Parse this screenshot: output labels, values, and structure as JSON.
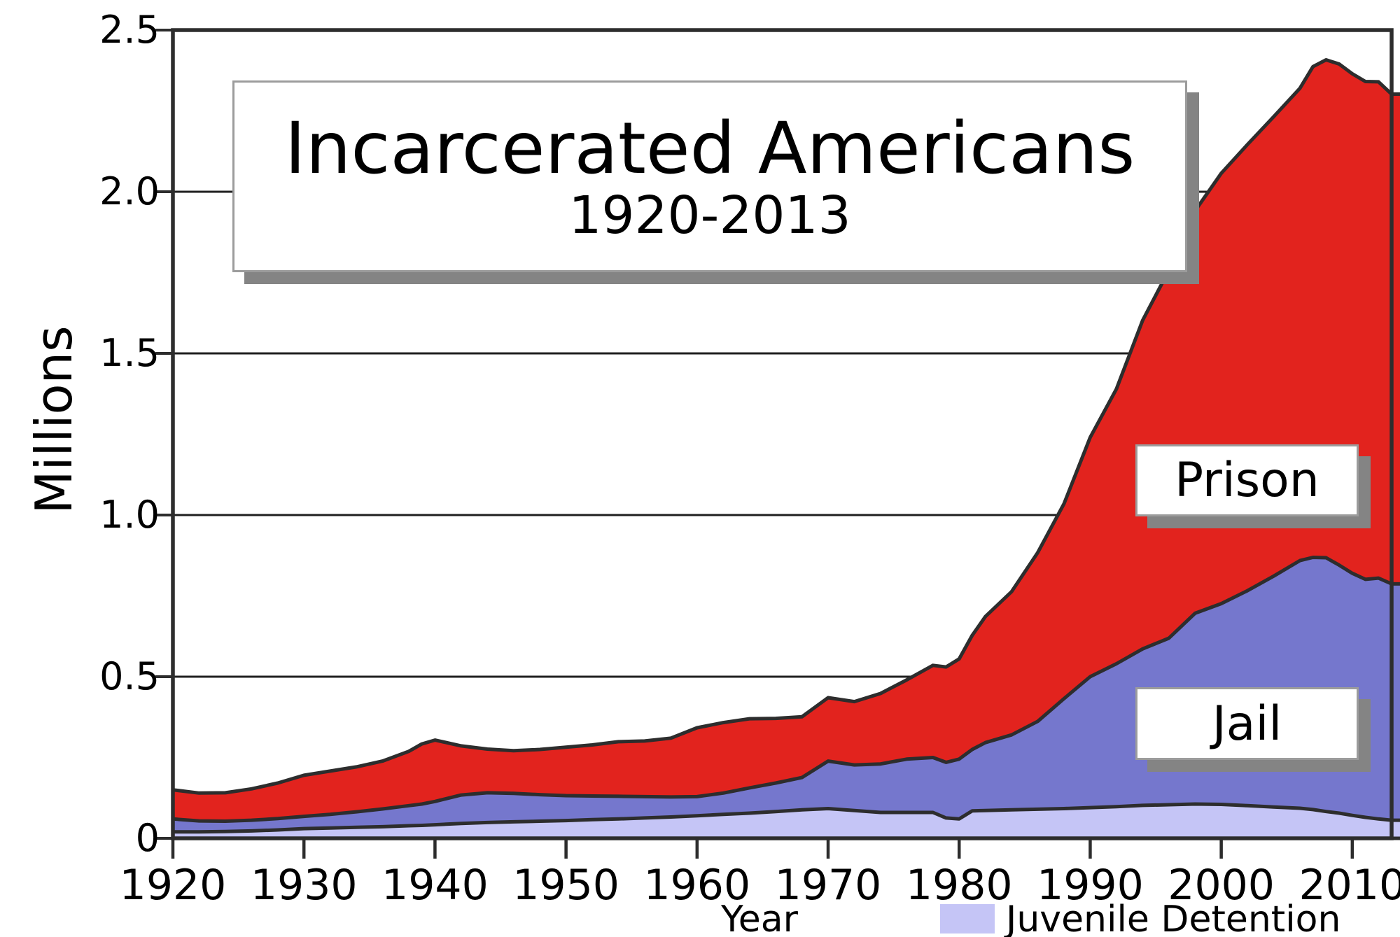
{
  "title_box": {
    "title": "Incarcerated Americans",
    "subtitle": "1920-2013"
  },
  "y_axis": {
    "label": "Millions",
    "ticks": [
      {
        "label": "0",
        "value": 0
      },
      {
        "label": "0.5",
        "value": 0.5
      },
      {
        "label": "1.0",
        "value": 1.0
      },
      {
        "label": "1.5",
        "value": 1.5
      },
      {
        "label": "2.0",
        "value": 2.0
      },
      {
        "label": "2.5",
        "value": 2.5
      }
    ]
  },
  "x_axis": {
    "label": "Year",
    "ticks": [
      {
        "label": "1920",
        "value": 1920
      },
      {
        "label": "1930",
        "value": 1930
      },
      {
        "label": "1940",
        "value": 1940
      },
      {
        "label": "1950",
        "value": 1950
      },
      {
        "label": "1960",
        "value": 1960
      },
      {
        "label": "1970",
        "value": 1970
      },
      {
        "label": "1980",
        "value": 1980
      },
      {
        "label": "1990",
        "value": 1990
      },
      {
        "label": "2000",
        "value": 2000
      },
      {
        "label": "2010",
        "value": 2010
      }
    ]
  },
  "area_labels": {
    "prison": "Prison",
    "jail": "Jail"
  },
  "legend": {
    "items": [
      {
        "label": "Juvenile Detention",
        "color": "#c5c5f6"
      }
    ]
  },
  "colors": {
    "prison": "#e2231e",
    "jail": "#7577cd",
    "juvenile": "#c5c5f6",
    "outline": "#2d2d2d",
    "grid": "#1f1f1f",
    "border": "#2d2d2d",
    "box_shadow": "#848484",
    "box_border": "#9c9c9c",
    "background": "#ffffff"
  },
  "chart_data": {
    "type": "area",
    "stacked": true,
    "title": "Incarcerated Americans 1920-2013",
    "xlabel": "Year",
    "ylabel": "Millions",
    "xlim": [
      1920,
      2013
    ],
    "ylim": [
      0,
      2.5
    ],
    "grid": "horizontal",
    "legend_position": "bottom-right",
    "x": [
      1920,
      1922,
      1924,
      1926,
      1928,
      1930,
      1932,
      1934,
      1936,
      1938,
      1939,
      1940,
      1942,
      1944,
      1946,
      1948,
      1950,
      1952,
      1954,
      1956,
      1958,
      1960,
      1962,
      1964,
      1966,
      1968,
      1970,
      1972,
      1974,
      1976,
      1978,
      1979,
      1980,
      1981,
      1982,
      1984,
      1986,
      1988,
      1990,
      1992,
      1994,
      1996,
      1998,
      2000,
      2002,
      2004,
      2006,
      2007,
      2008,
      2009,
      2010,
      2011,
      2012,
      2013
    ],
    "series": [
      {
        "name": "Juvenile Detention",
        "color": "#c5c5f6",
        "values": [
          0.02,
          0.02,
          0.021,
          0.023,
          0.026,
          0.03,
          0.032,
          0.034,
          0.036,
          0.039,
          0.04,
          0.042,
          0.046,
          0.049,
          0.051,
          0.053,
          0.055,
          0.058,
          0.06,
          0.063,
          0.066,
          0.07,
          0.074,
          0.078,
          0.083,
          0.088,
          0.092,
          0.086,
          0.08,
          0.08,
          0.08,
          0.063,
          0.06,
          0.085,
          0.086,
          0.088,
          0.09,
          0.092,
          0.095,
          0.098,
          0.102,
          0.104,
          0.106,
          0.105,
          0.101,
          0.097,
          0.093,
          0.089,
          0.083,
          0.078,
          0.071,
          0.065,
          0.06,
          0.056
        ]
      },
      {
        "name": "Jail",
        "color": "#7577cd",
        "values": [
          0.04,
          0.034,
          0.032,
          0.033,
          0.035,
          0.038,
          0.042,
          0.048,
          0.055,
          0.062,
          0.066,
          0.072,
          0.088,
          0.092,
          0.088,
          0.082,
          0.077,
          0.073,
          0.07,
          0.066,
          0.062,
          0.059,
          0.066,
          0.078,
          0.088,
          0.1,
          0.147,
          0.141,
          0.15,
          0.165,
          0.17,
          0.172,
          0.185,
          0.19,
          0.21,
          0.232,
          0.272,
          0.34,
          0.405,
          0.442,
          0.484,
          0.515,
          0.59,
          0.621,
          0.665,
          0.714,
          0.766,
          0.78,
          0.785,
          0.767,
          0.749,
          0.736,
          0.745,
          0.731
        ]
      },
      {
        "name": "Prison",
        "color": "#e2231e",
        "values": [
          0.09,
          0.086,
          0.088,
          0.097,
          0.11,
          0.127,
          0.134,
          0.139,
          0.148,
          0.168,
          0.186,
          0.19,
          0.152,
          0.135,
          0.132,
          0.14,
          0.15,
          0.158,
          0.169,
          0.172,
          0.182,
          0.213,
          0.218,
          0.214,
          0.2,
          0.188,
          0.196,
          0.196,
          0.218,
          0.245,
          0.285,
          0.295,
          0.31,
          0.353,
          0.39,
          0.443,
          0.522,
          0.603,
          0.74,
          0.85,
          1.016,
          1.138,
          1.245,
          1.331,
          1.38,
          1.421,
          1.461,
          1.518,
          1.54,
          1.55,
          1.545,
          1.54,
          1.535,
          1.515
        ]
      }
    ]
  }
}
